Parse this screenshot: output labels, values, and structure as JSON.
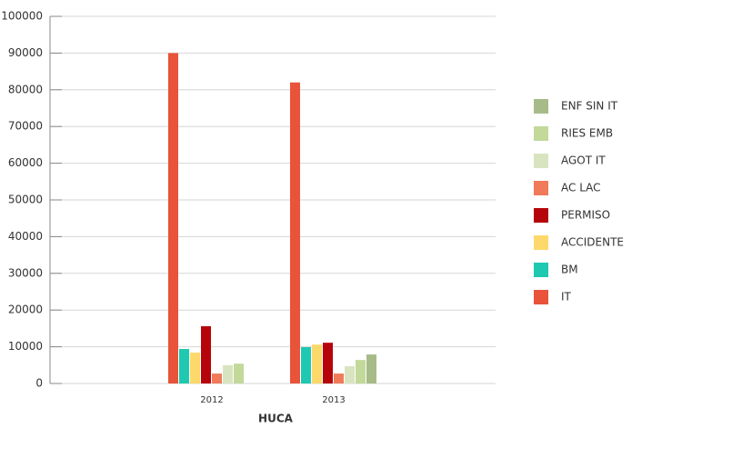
{
  "chart_data": {
    "type": "bar",
    "x_label": "HUCA",
    "categories": [
      "2012",
      "2013"
    ],
    "series": [
      {
        "name": "IT",
        "color": "#e8533a",
        "values": [
          90000,
          82000
        ]
      },
      {
        "name": "BM",
        "color": "#1fc8b0",
        "values": [
          9400,
          9900
        ]
      },
      {
        "name": "ACCIDENTE",
        "color": "#fdd96b",
        "values": [
          8400,
          10600
        ]
      },
      {
        "name": "PERMISO",
        "color": "#b5050b",
        "values": [
          15600,
          11100
        ]
      },
      {
        "name": "AC LAC",
        "color": "#f07a5a",
        "values": [
          2700,
          2700
        ]
      },
      {
        "name": "AGOT IT",
        "color": "#d8e4c0",
        "values": [
          5000,
          4700
        ]
      },
      {
        "name": "RIES EMB",
        "color": "#c2d99a",
        "values": [
          5400,
          6400
        ]
      },
      {
        "name": "ENF SIN IT",
        "color": "#a7bb88",
        "values": [
          null,
          7900
        ]
      }
    ],
    "ylim": [
      0,
      100000
    ],
    "yticks": [
      0,
      10000,
      20000,
      30000,
      40000,
      50000,
      60000,
      70000,
      80000,
      90000,
      100000
    ],
    "grid": true,
    "legend": "right"
  }
}
